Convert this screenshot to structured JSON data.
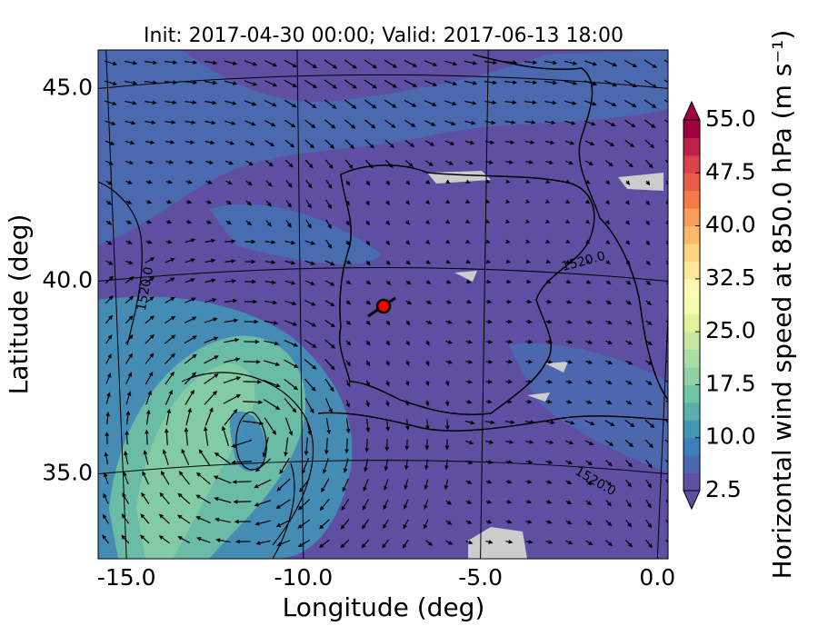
{
  "chart_data": {
    "type": "map",
    "title": "Init: 2017-04-30 00:00; Valid: 2017-06-13 18:00",
    "x_label": "Longitude (deg)",
    "y_label": "Latitude (deg)",
    "xlim": [
      -15.8,
      0.3
    ],
    "ylim": [
      32.8,
      46.0
    ],
    "xticks": [
      {
        "value": -15,
        "label": "-15.0"
      },
      {
        "value": -10,
        "label": "-10.0"
      },
      {
        "value": -5,
        "label": "-5.0"
      },
      {
        "value": 0,
        "label": "0.0"
      }
    ],
    "yticks": [
      {
        "value": 35,
        "label": "35.0"
      },
      {
        "value": 40,
        "label": "40.0"
      },
      {
        "value": 45,
        "label": "45.0"
      }
    ],
    "grid": true,
    "contour_labels": [
      "1520.0",
      "1520.0",
      "1520.0"
    ],
    "colorbar": {
      "label": "Horizontal wind speed at 850.0 hPa (m s⁻¹)",
      "lim": [
        2.5,
        55
      ],
      "ticks": [
        2.5,
        {
          "value": 10,
          "label": "10.0"
        },
        17.5,
        {
          "value": 25,
          "label": "25.0"
        },
        32.5,
        {
          "value": 40,
          "label": "40.0"
        },
        47.5,
        {
          "value": 55,
          "label": "55.0"
        }
      ],
      "colors": [
        "#5e4fa2",
        "#4b67ad",
        "#3a80b9",
        "#4297b6",
        "#5aaeab",
        "#71c4a5",
        "#8fd1a4",
        "#aadca4",
        "#c6e79f",
        "#e0f29a",
        "#f4faaf",
        "#fff7b3",
        "#fee89a",
        "#fed382",
        "#fdb86a",
        "#fb9a59",
        "#f67a49",
        "#e95c47",
        "#d8434e",
        "#bd2249",
        "#9e0142"
      ]
    }
  }
}
